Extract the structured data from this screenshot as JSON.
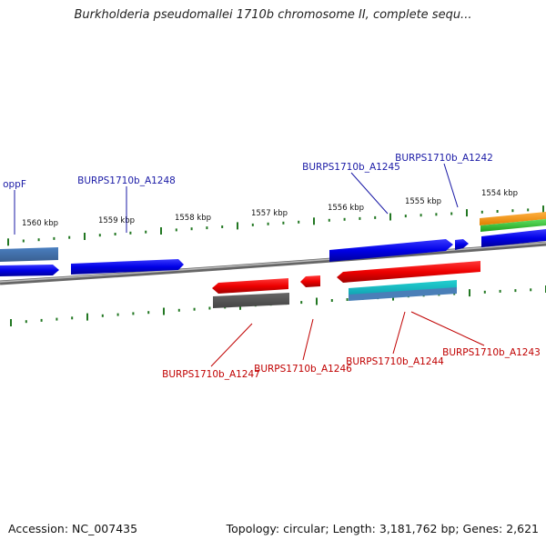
{
  "header": {
    "title": "Burkholderia pseudomallei 1710b chromosome II, complete sequ..."
  },
  "footer": {
    "accession": "Accession: NC_007435",
    "topology": "Topology: circular; Length: 3,181,762 bp; Genes: 2,621"
  },
  "map": {
    "tick_labels": [
      "1560 kbp",
      "1559 kbp",
      "1558 kbp",
      "1557 kbp",
      "1556 kbp",
      "1555 kbp",
      "1554 kbp"
    ],
    "forward_labels": [
      "oppF",
      "BURPS1710b_A1248",
      "BURPS1710b_A1245",
      "BURPS1710b_A1242"
    ],
    "reverse_labels": [
      "BURPS1710b_A1247",
      "BURPS1710b_A1246",
      "BURPS1710b_A1244",
      "BURPS1710b_A1243"
    ]
  },
  "colors": {
    "forward_label": "#1a1aa6",
    "reverse_label": "#c00000",
    "forward_gene": "#0a0ae0",
    "reverse_gene": "#ee0000",
    "backbone": "#777777",
    "tick": "#227722"
  }
}
